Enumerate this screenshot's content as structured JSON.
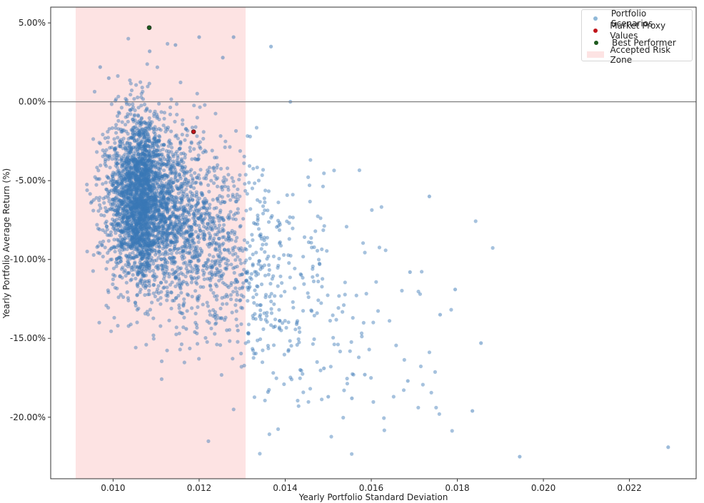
{
  "chart_data": {
    "type": "scatter",
    "title": "",
    "xlabel": "Yearly Portfolio Standard Deviation",
    "ylabel": "Yearly Portfolio Average Return (%)",
    "xlim": [
      0.00855,
      0.02355
    ],
    "ylim": [
      -23.9,
      6.0
    ],
    "x_ticks": [
      0.01,
      0.012,
      0.014,
      0.016,
      0.018,
      0.02,
      0.022
    ],
    "x_tick_labels": [
      "0.010",
      "0.012",
      "0.014",
      "0.016",
      "0.018",
      "0.020",
      "0.022"
    ],
    "y_ticks": [
      5,
      0,
      -5,
      -10,
      -15,
      -20
    ],
    "y_tick_labels": [
      "5.00%",
      "0.00%",
      "-5.00%",
      "-10.00%",
      "-15.00%",
      "-20.00%"
    ],
    "grid": false,
    "legend_position": "upper right",
    "horizontal_line": {
      "y": 0.0,
      "color": "#808080"
    },
    "accepted_risk_zone": {
      "x_start": 0.00913,
      "x_end": 0.01308,
      "color": "#fde3e3"
    },
    "series": [
      {
        "name": "Portfolio Scenarios",
        "color": "#3a78b5",
        "alpha": 0.5,
        "approx_count": 10000,
        "cloud_center": {
          "x": 0.01085,
          "y": -6.2
        },
        "cloud_spread": {
          "x": 0.00085,
          "y": 2.6
        },
        "notable_points": [
          {
            "x": 0.01367,
            "y": 3.5
          },
          {
            "x": 0.012,
            "y": 4.1
          },
          {
            "x": 0.0128,
            "y": 4.1
          },
          {
            "x": 0.01412,
            "y": 0.0
          },
          {
            "x": 0.01735,
            "y": -6.0
          },
          {
            "x": 0.01795,
            "y": -11.9
          },
          {
            "x": 0.0169,
            "y": -10.8
          },
          {
            "x": 0.0176,
            "y": -13.5
          },
          {
            "x": 0.01855,
            "y": -15.3
          },
          {
            "x": 0.01835,
            "y": -19.6
          },
          {
            "x": 0.01945,
            "y": -22.5
          },
          {
            "x": 0.0229,
            "y": -21.9
          },
          {
            "x": 0.01555,
            "y": -18.8
          },
          {
            "x": 0.015,
            "y": -18.7
          },
          {
            "x": 0.0136,
            "y": -18.4
          },
          {
            "x": 0.01685,
            "y": -17.7
          },
          {
            "x": 0.01585,
            "y": -17.3
          },
          {
            "x": 0.0149,
            "y": -16.9
          },
          {
            "x": 0.01435,
            "y": -17.0
          },
          {
            "x": 0.0119,
            "y": -14.6
          },
          {
            "x": 0.0117,
            "y": -14.4
          },
          {
            "x": 0.0129,
            "y": -14.5
          },
          {
            "x": 0.0097,
            "y": 2.2
          },
          {
            "x": 0.0099,
            "y": 1.5
          },
          {
            "x": 0.01145,
            "y": 3.6
          },
          {
            "x": 0.01085,
            "y": 3.2
          },
          {
            "x": 0.01255,
            "y": 2.8
          }
        ]
      },
      {
        "name": "Market Proxy Values",
        "color": "#c0141a",
        "points": [
          {
            "x": 0.01187,
            "y": -1.9
          }
        ]
      },
      {
        "name": "Best Performer",
        "color": "#1e5a1e",
        "points": [
          {
            "x": 0.01084,
            "y": 4.7
          }
        ]
      }
    ]
  },
  "legend": {
    "items": [
      {
        "label": "Portfolio Scenarios",
        "kind": "dot",
        "color": "#8fb8d8"
      },
      {
        "label": "Market Proxy Values",
        "kind": "dot",
        "color": "#c0141a"
      },
      {
        "label": "Best Performer",
        "kind": "dot",
        "color": "#1e5a1e"
      },
      {
        "label": "Accepted Risk Zone",
        "kind": "patch",
        "color": "#fde3e3"
      }
    ]
  }
}
